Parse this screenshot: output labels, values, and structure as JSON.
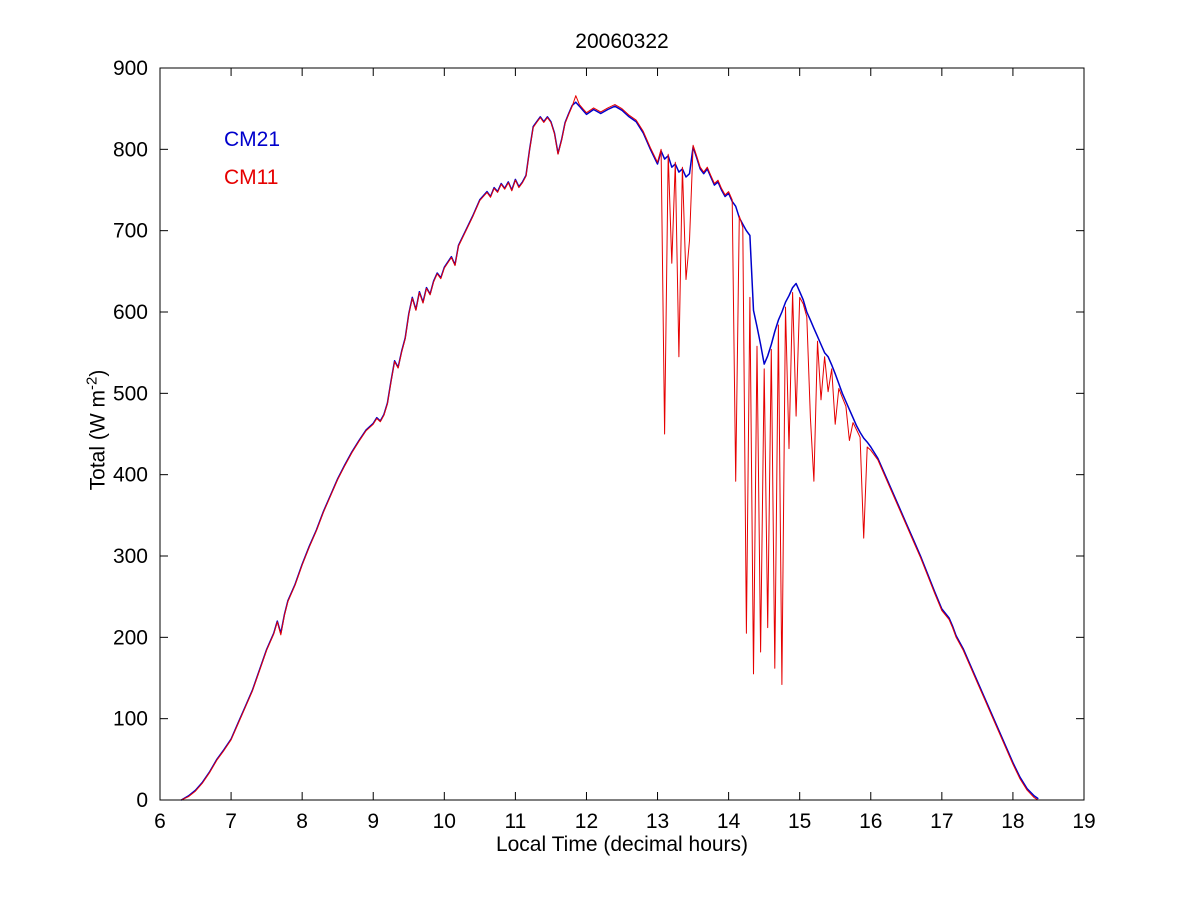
{
  "chart_data": {
    "type": "line",
    "title": "20060322",
    "xlabel": "Local Time (decimal hours)",
    "ylabel": "Total (W m-2)",
    "ylabel_parts": {
      "prefix": "Total (W m",
      "sup": "-2",
      "suffix": ")"
    },
    "xlim": [
      6,
      19
    ],
    "ylim": [
      0,
      900
    ],
    "xticks": [
      6,
      7,
      8,
      9,
      10,
      11,
      12,
      13,
      14,
      15,
      16,
      17,
      18,
      19
    ],
    "yticks": [
      0,
      100,
      200,
      300,
      400,
      500,
      600,
      700,
      800,
      900
    ],
    "grid": false,
    "legend_position": "inside-upper-left",
    "axis_color": "#000000",
    "background_color": "#ffffff",
    "x": [
      6.3,
      6.4,
      6.5,
      6.6,
      6.7,
      6.8,
      6.9,
      7.0,
      7.1,
      7.2,
      7.3,
      7.4,
      7.5,
      7.6,
      7.65,
      7.7,
      7.75,
      7.8,
      7.9,
      8.0,
      8.1,
      8.2,
      8.3,
      8.4,
      8.5,
      8.6,
      8.7,
      8.8,
      8.9,
      9.0,
      9.05,
      9.1,
      9.15,
      9.2,
      9.25,
      9.3,
      9.35,
      9.4,
      9.45,
      9.5,
      9.55,
      9.6,
      9.65,
      9.7,
      9.75,
      9.8,
      9.85,
      9.9,
      9.95,
      10.0,
      10.1,
      10.15,
      10.2,
      10.3,
      10.4,
      10.5,
      10.6,
      10.65,
      10.7,
      10.75,
      10.8,
      10.85,
      10.9,
      10.95,
      11.0,
      11.05,
      11.1,
      11.15,
      11.2,
      11.25,
      11.3,
      11.35,
      11.4,
      11.45,
      11.5,
      11.55,
      11.6,
      11.65,
      11.7,
      11.75,
      11.8,
      11.85,
      11.9,
      11.95,
      12.0,
      12.1,
      12.2,
      12.3,
      12.4,
      12.5,
      12.6,
      12.7,
      12.8,
      12.9,
      13.0,
      13.05,
      13.1,
      13.15,
      13.2,
      13.25,
      13.3,
      13.35,
      13.4,
      13.45,
      13.5,
      13.55,
      13.6,
      13.65,
      13.7,
      13.75,
      13.8,
      13.85,
      13.9,
      13.95,
      14.0,
      14.05,
      14.1,
      14.15,
      14.2,
      14.25,
      14.3,
      14.35,
      14.4,
      14.45,
      14.5,
      14.55,
      14.6,
      14.65,
      14.7,
      14.75,
      14.8,
      14.85,
      14.9,
      14.95,
      15.0,
      15.05,
      15.1,
      15.15,
      15.2,
      15.25,
      15.3,
      15.35,
      15.4,
      15.45,
      15.5,
      15.55,
      15.6,
      15.65,
      15.7,
      15.75,
      15.8,
      15.85,
      15.9,
      15.95,
      16.0,
      16.1,
      16.2,
      16.3,
      16.4,
      16.5,
      16.6,
      16.7,
      16.8,
      16.9,
      17.0,
      17.1,
      17.15,
      17.2,
      17.3,
      17.4,
      17.5,
      17.6,
      17.7,
      17.8,
      17.9,
      18.0,
      18.1,
      18.2,
      18.3,
      18.35
    ],
    "series": [
      {
        "name": "CM21",
        "color": "#0000cc",
        "values": [
          0,
          5,
          12,
          22,
          35,
          50,
          62,
          75,
          95,
          115,
          135,
          160,
          185,
          205,
          220,
          205,
          228,
          245,
          265,
          290,
          312,
          332,
          355,
          375,
          395,
          412,
          428,
          442,
          455,
          463,
          470,
          466,
          474,
          488,
          515,
          540,
          532,
          552,
          568,
          598,
          618,
          603,
          625,
          612,
          630,
          622,
          638,
          648,
          642,
          655,
          668,
          658,
          682,
          700,
          718,
          738,
          748,
          742,
          753,
          748,
          758,
          752,
          760,
          750,
          763,
          754,
          760,
          768,
          800,
          828,
          834,
          840,
          834,
          840,
          834,
          820,
          795,
          812,
          833,
          844,
          854,
          858,
          853,
          848,
          843,
          849,
          844,
          849,
          853,
          848,
          840,
          834,
          820,
          800,
          782,
          798,
          788,
          792,
          778,
          782,
          772,
          776,
          766,
          770,
          803,
          790,
          776,
          770,
          776,
          766,
          756,
          760,
          750,
          742,
          746,
          736,
          730,
          716,
          708,
          700,
          694,
          602,
          582,
          560,
          536,
          546,
          560,
          576,
          590,
          600,
          612,
          620,
          630,
          635,
          625,
          615,
          600,
          590,
          580,
          570,
          560,
          550,
          545,
          535,
          524,
          512,
          500,
          490,
          480,
          470,
          460,
          452,
          445,
          440,
          434,
          420,
          400,
          380,
          360,
          340,
          320,
          300,
          278,
          256,
          235,
          224,
          214,
          202,
          186,
          166,
          146,
          126,
          106,
          86,
          66,
          46,
          28,
          14,
          5,
          2
        ]
      },
      {
        "name": "CM11",
        "color": "#e60000",
        "values": [
          0,
          4,
          11,
          21,
          34,
          49,
          61,
          74,
          94,
          114,
          134,
          159,
          184,
          204,
          219,
          203,
          227,
          244,
          264,
          289,
          311,
          331,
          354,
          374,
          394,
          411,
          427,
          441,
          454,
          462,
          469,
          465,
          473,
          487,
          514,
          539,
          531,
          551,
          567,
          597,
          617,
          602,
          624,
          611,
          629,
          621,
          637,
          647,
          641,
          654,
          667,
          657,
          681,
          699,
          717,
          737,
          747,
          741,
          752,
          747,
          757,
          751,
          759,
          749,
          762,
          753,
          759,
          767,
          799,
          827,
          833,
          839,
          833,
          839,
          833,
          819,
          794,
          811,
          832,
          843,
          853,
          866,
          855,
          850,
          845,
          851,
          846,
          851,
          855,
          850,
          842,
          836,
          822,
          802,
          784,
          800,
          450,
          794,
          660,
          784,
          545,
          778,
          640,
          688,
          805,
          792,
          778,
          772,
          778,
          768,
          758,
          762,
          752,
          744,
          748,
          738,
          392,
          718,
          704,
          205,
          618,
          155,
          558,
          182,
          530,
          212,
          554,
          162,
          584,
          142,
          606,
          432,
          624,
          472,
          618,
          610,
          594,
          470,
          392,
          564,
          492,
          545,
          502,
          530,
          462,
          506,
          495,
          484,
          442,
          464,
          455,
          446,
          322,
          434,
          430,
          418,
          398,
          378,
          358,
          338,
          318,
          298,
          276,
          254,
          233,
          222,
          212,
          200,
          184,
          164,
          144,
          124,
          104,
          84,
          64,
          44,
          26,
          12,
          3,
          0
        ]
      }
    ]
  }
}
